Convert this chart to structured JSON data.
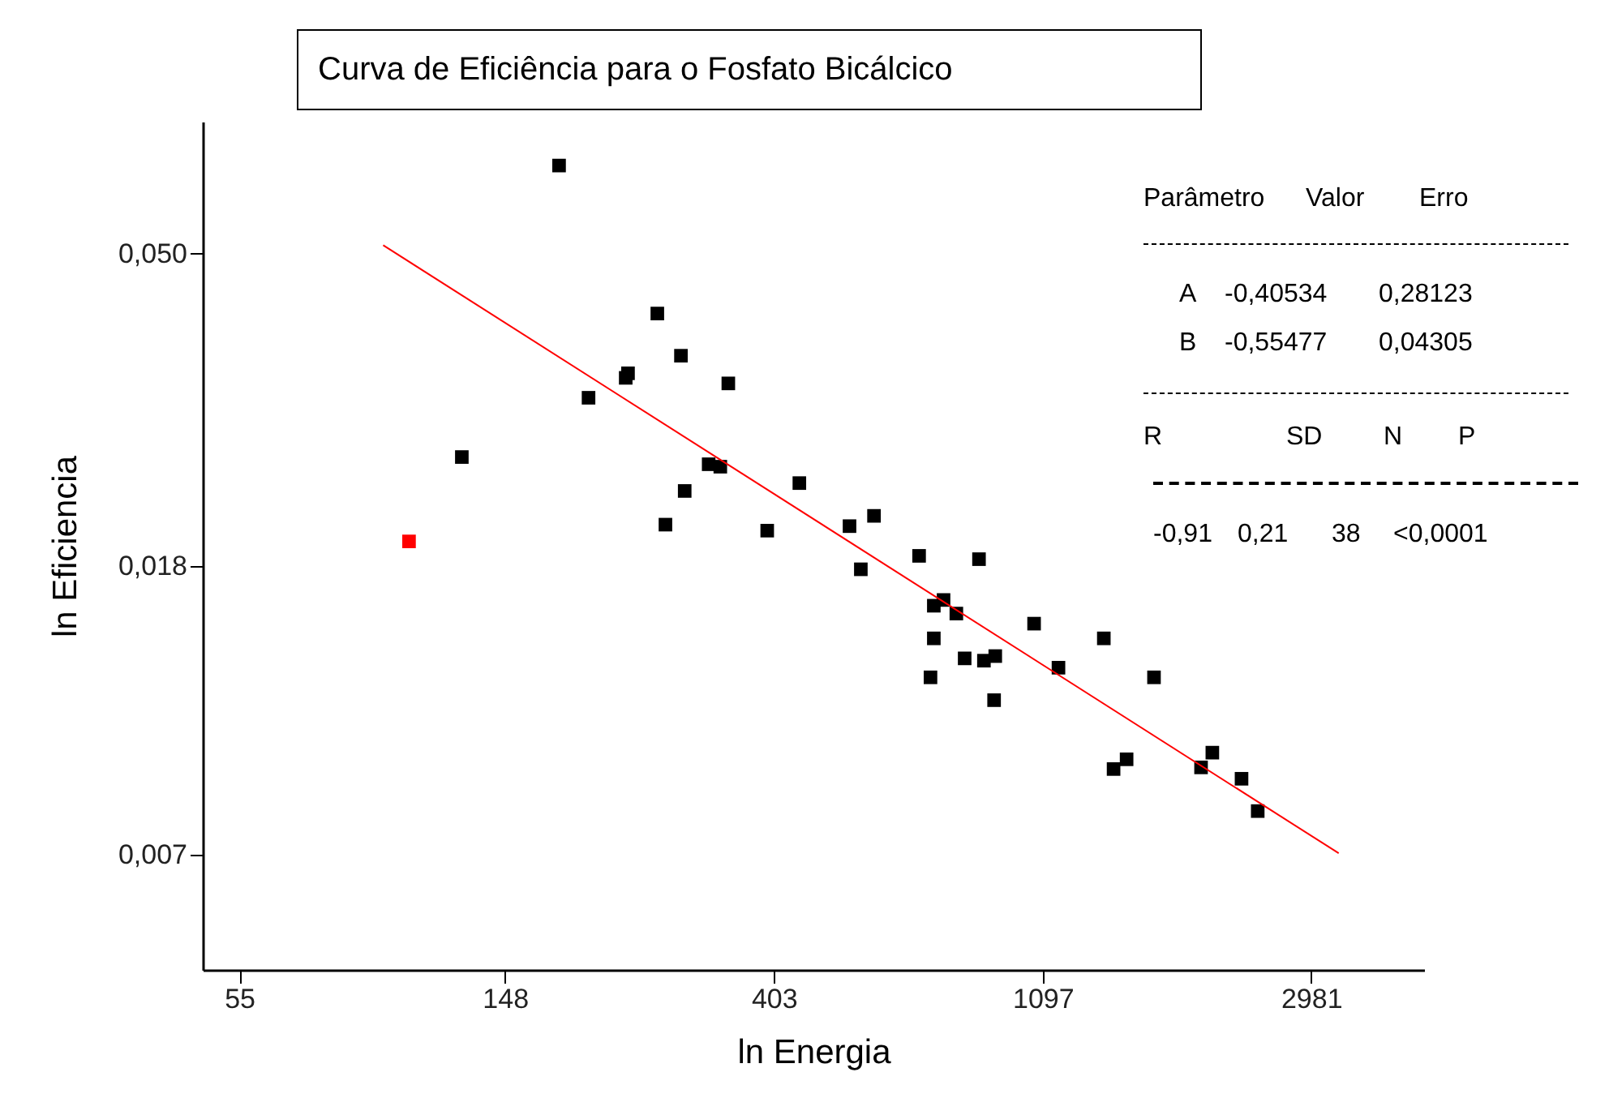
{
  "chart_data": {
    "type": "scatter",
    "title": "Curva de Eficiência para o Fosfato Bicálcico",
    "xlabel": "ln Energia",
    "ylabel": "ln Eficiencia",
    "log": "xy",
    "marker": "square",
    "grid": false,
    "xlim": [
      48,
      4540
    ],
    "ylim": [
      0.0048,
      0.077
    ],
    "xticks": [
      55,
      148,
      403,
      1097,
      2981
    ],
    "yticks": [
      {
        "value": 0.007,
        "label": "0,007"
      },
      {
        "value": 0.018,
        "label": "0,018"
      },
      {
        "value": 0.05,
        "label": "0,050"
      }
    ],
    "series": [
      {
        "color": "#000000",
        "x": [
          181,
          126,
          202,
          232,
          234,
          261,
          285,
          340,
          269,
          289,
          316,
          330,
          393,
          443,
          534,
          585,
          557,
          692,
          865,
          731,
          758,
          795,
          731,
          722,
          820,
          881,
          919,
          915,
          1062,
          1163,
          1377,
          1428,
          1499,
          1660,
          1978,
          2063,
          2300,
          2443
        ],
        "values": [
          0.0667,
          0.0257,
          0.0312,
          0.0333,
          0.0338,
          0.0411,
          0.0358,
          0.0327,
          0.0206,
          0.023,
          0.0251,
          0.0249,
          0.0202,
          0.0236,
          0.0205,
          0.0212,
          0.0178,
          0.0186,
          0.0184,
          0.0158,
          0.0161,
          0.0154,
          0.0142,
          0.0125,
          0.0133,
          0.0132,
          0.0134,
          0.0116,
          0.0149,
          0.0129,
          0.0142,
          0.00926,
          0.00956,
          0.0125,
          0.00931,
          0.00977,
          0.00897,
          0.00807
        ]
      },
      {
        "color": "#ff0000",
        "x": [
          103.5
        ],
        "values": [
          0.0195
        ]
      },
      {
        "type": "line",
        "marker": "none",
        "color": "#ff0000",
        "x": [
          94,
          3303
        ],
        "values": [
          0.0514,
          0.00703
        ]
      }
    ],
    "annotations": [
      "Parâmetro  Valor  Erro",
      "A  -0,40534  0,28123",
      "B  -0,55477  0,04305",
      "R  SD  N  P",
      "-0,91  0,21  38  <0,0001"
    ]
  }
}
